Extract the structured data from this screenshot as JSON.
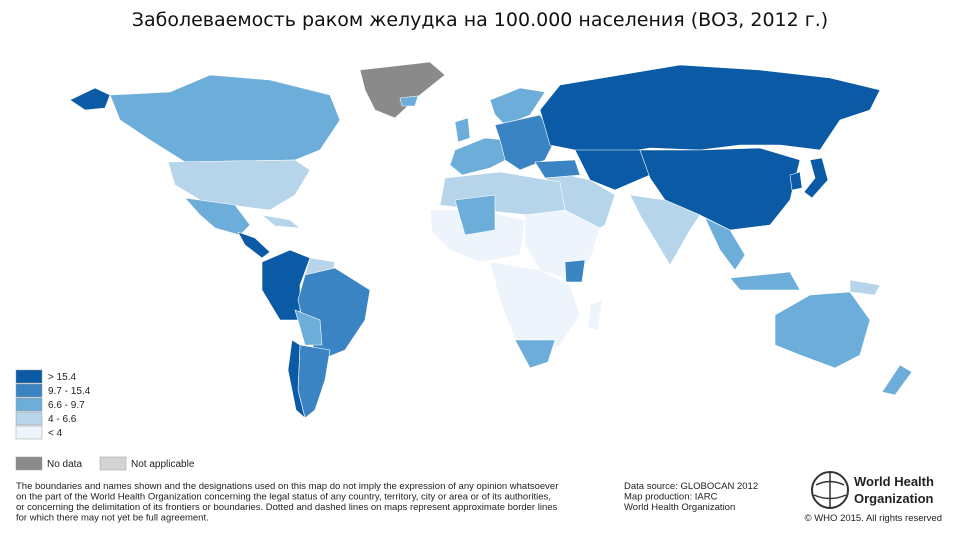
{
  "header": {
    "title": "Заболеваемость раком желудка на 100.000 населения (ВОЗ, 2012 г.)"
  },
  "legend": {
    "items": [
      {
        "label": "> 15.4",
        "color": "#0b5aa6"
      },
      {
        "label": "9.7  -  15.4",
        "color": "#3b84c4"
      },
      {
        "label": "6.6  -  9.7",
        "color": "#6caed9"
      },
      {
        "label": "4  -  6.6",
        "color": "#b6d4ea"
      },
      {
        "label": "< 4",
        "color": "#eef4fb"
      }
    ],
    "extra": [
      {
        "label": "No data",
        "color": "#8a8a8a"
      },
      {
        "label": "Not applicable",
        "color": "#d4d4d4"
      }
    ]
  },
  "disclaimer": [
    "The boundaries and names shown and the designations used on this map do not imply the expression of any opinion whatsoever",
    "on the part of the World Health Organization concerning the legal status of any country, territory, city or area or of its authorities,",
    "or concerning the delimitation of its frontiers or boundaries. Dotted and dashed lines on maps represent approximate border lines",
    "for which there may not yet be full agreement."
  ],
  "source": [
    "Data source: GLOBOCAN 2012",
    "Map production: IARC",
    "World Health Organization"
  ],
  "logo": [
    "World Health",
    "Organization"
  ],
  "copyright": "© WHO 2015. All rights reserved"
}
